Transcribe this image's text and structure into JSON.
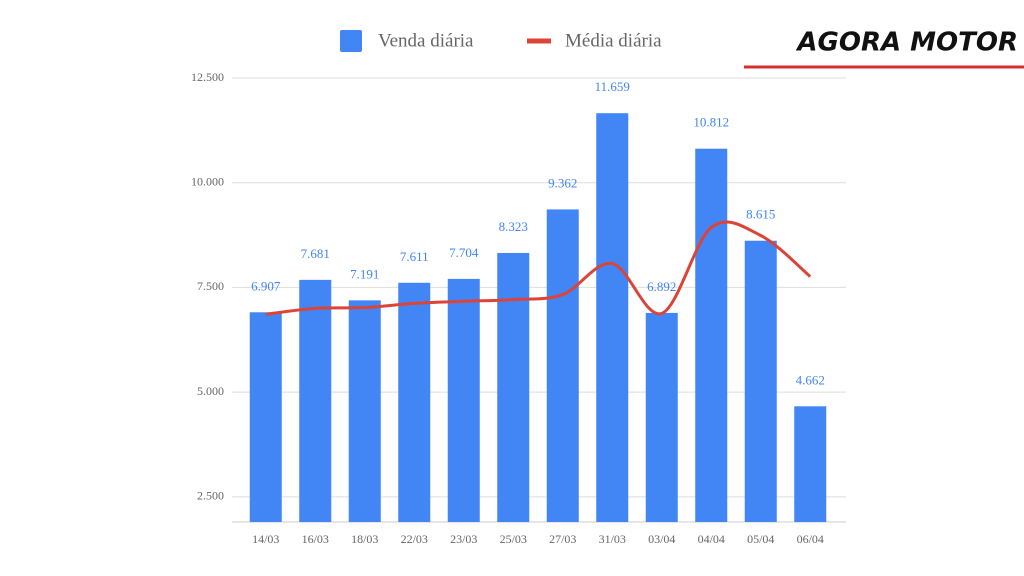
{
  "brand": "AGORA MOTOR",
  "chart_data": {
    "type": "bar",
    "categories": [
      "14/03",
      "16/03",
      "18/03",
      "22/03",
      "23/03",
      "25/03",
      "27/03",
      "31/03",
      "03/04",
      "04/04",
      "05/04",
      "06/04"
    ],
    "series": [
      {
        "name": "Venda diária",
        "type": "bar",
        "color": "#4285f4",
        "values": [
          6907,
          7681,
          7191,
          7611,
          7704,
          8323,
          9362,
          11659,
          6892,
          10812,
          8615,
          4662
        ],
        "value_labels": [
          "6.907",
          "7.681",
          "7.191",
          "7.611",
          "7.704",
          "8.323",
          "9.362",
          "11.659",
          "6.892",
          "10.812",
          "8.615",
          "4.662"
        ]
      },
      {
        "name": "Média diária",
        "type": "line",
        "color": "#db4437",
        "values": [
          6860,
          7000,
          7020,
          7120,
          7170,
          7210,
          7330,
          8070,
          6880,
          8930,
          8740,
          7760
        ]
      }
    ],
    "ylim": [
      1900,
      12500
    ],
    "yticks": [
      {
        "value": 2500,
        "label": "2.500"
      },
      {
        "value": 5000,
        "label": "5.000"
      },
      {
        "value": 7500,
        "label": "7.500"
      },
      {
        "value": 10000,
        "label": "10.000"
      },
      {
        "value": 12500,
        "label": "12.500"
      }
    ],
    "grid": true
  }
}
